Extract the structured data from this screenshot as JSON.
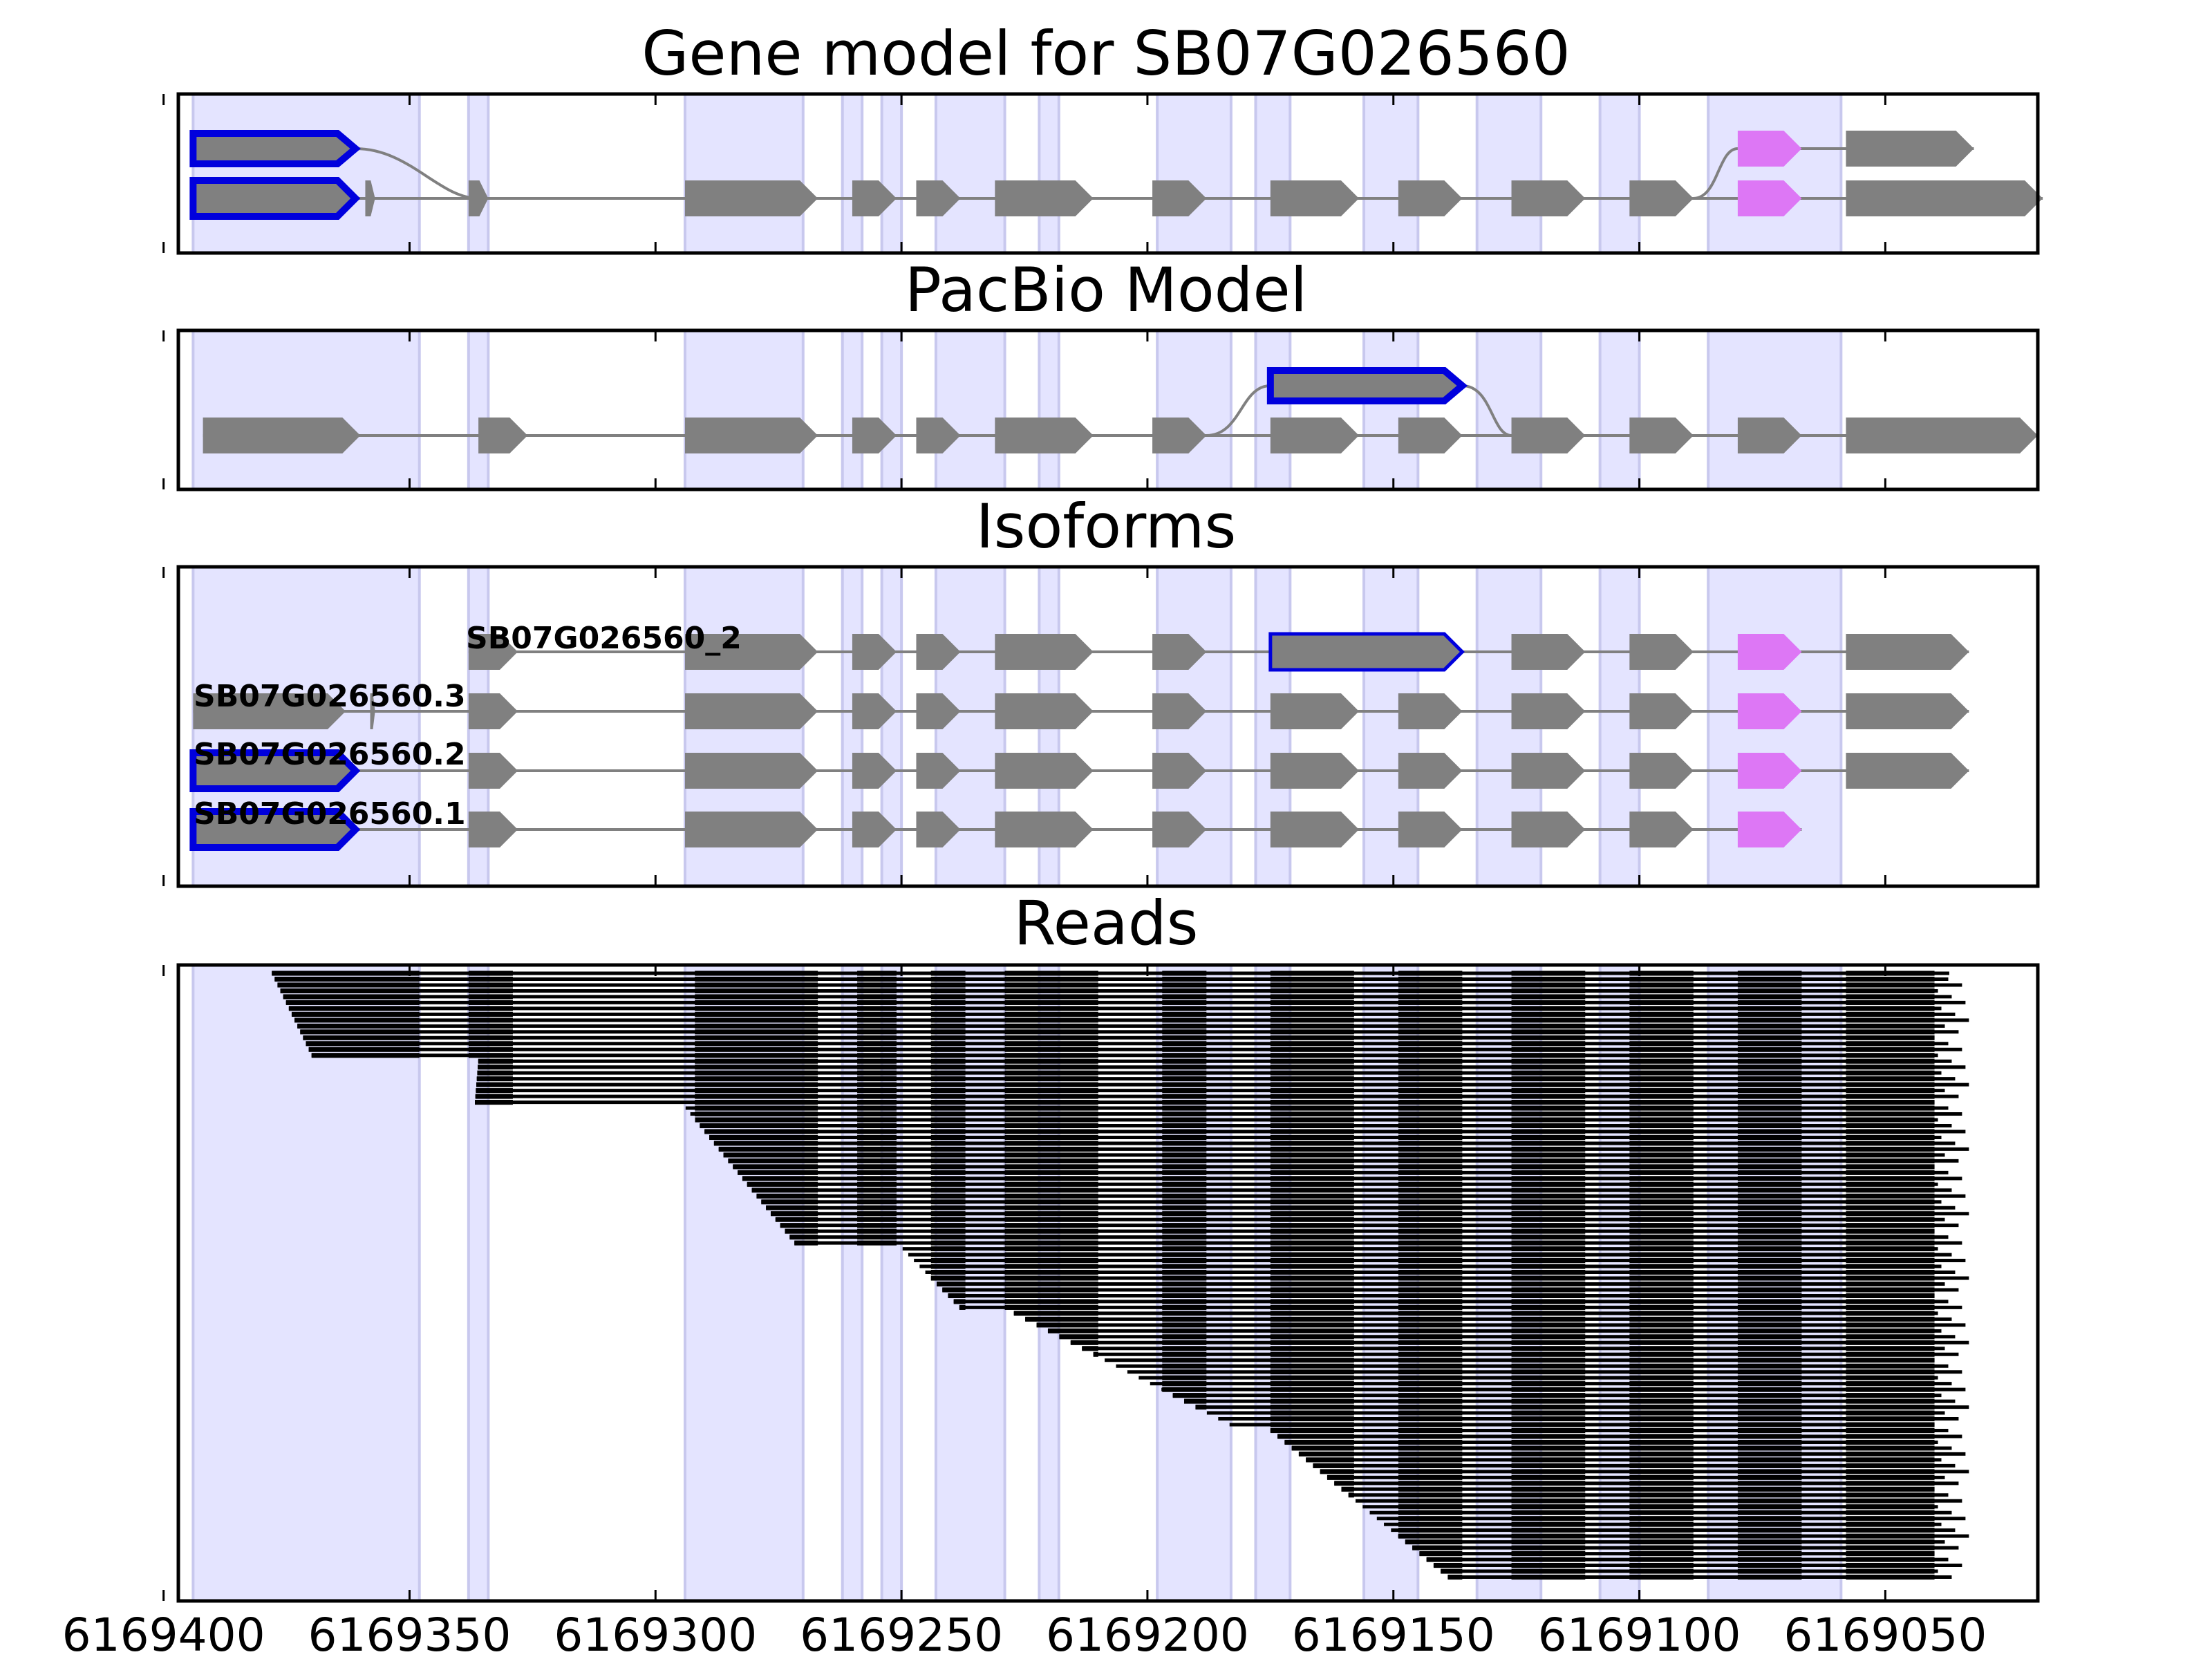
{
  "colors": {
    "exon": "#808080",
    "highlight_outline": "#0000dd",
    "magenta": "#dd77f5",
    "band": "#e4e4ff",
    "band_edge": "#c8c8ee",
    "intron": "#808080",
    "read": "#000000"
  },
  "exon_bands": [
    [
      6169394,
      6169348
    ],
    [
      6169338,
      6169334
    ],
    [
      6169294,
      6169270
    ],
    [
      6169262,
      6169258
    ],
    [
      6169254,
      6169250
    ],
    [
      6169243,
      6169229
    ],
    [
      6169222,
      6169218
    ],
    [
      6169198,
      6169183
    ],
    [
      6169178,
      6169171
    ],
    [
      6169156,
      6169145
    ],
    [
      6169133,
      6169120
    ],
    [
      6169108,
      6169100
    ],
    [
      6169086,
      6169059
    ]
  ],
  "x_axis": {
    "domain": [
      6169397,
      6169019
    ],
    "ticks": [
      {
        "value": 6169400,
        "label": "6169400"
      },
      {
        "value": 6169350,
        "label": "6169350"
      },
      {
        "value": 6169300,
        "label": "6169300"
      },
      {
        "value": 6169250,
        "label": "6169250"
      },
      {
        "value": 6169200,
        "label": "6169200"
      },
      {
        "value": 6169150,
        "label": "6169150"
      },
      {
        "value": 6169100,
        "label": "6169100"
      },
      {
        "value": 6169050,
        "label": "6169050"
      }
    ]
  },
  "panels": [
    {
      "id": "gene-model",
      "title": "Gene model for SB07G026560",
      "tracks": [
        {
          "exons": [
            [
              6169394,
              6169361,
              "highlight"
            ],
            [
              6169359,
              6169357
            ],
            [
              6169338,
              6169334
            ],
            [
              6169294,
              6169267
            ],
            [
              6169260,
              6169251
            ],
            [
              6169247,
              6169238
            ],
            [
              6169231,
              6169211
            ],
            [
              6169199,
              6169188
            ],
            [
              6169175,
              6169157
            ],
            [
              6169149,
              6169136
            ],
            [
              6169126,
              6169111
            ],
            [
              6169102,
              6169089
            ],
            [
              6169080,
              6169067,
              "magenta"
            ],
            [
              6169058,
              6169018
            ]
          ]
        },
        {
          "exons": [
            [
              6169080,
              6169067,
              "magenta"
            ],
            [
              6169058,
              6169032
            ]
          ]
        }
      ]
    },
    {
      "id": "pacbio-model",
      "title": "PacBio Model",
      "tracks": [
        {
          "exons": [
            [
              6169392,
              6169360
            ],
            [
              6169336,
              6169326
            ],
            [
              6169294,
              6169267
            ],
            [
              6169260,
              6169251
            ],
            [
              6169247,
              6169238
            ],
            [
              6169231,
              6169211
            ],
            [
              6169199,
              6169188
            ],
            [
              6169175,
              6169157
            ],
            [
              6169149,
              6169136
            ],
            [
              6169126,
              6169111
            ],
            [
              6169102,
              6169089
            ],
            [
              6169080,
              6169067
            ],
            [
              6169058,
              6169019
            ]
          ]
        },
        {
          "exons": [
            [
              6169175,
              6169136,
              "highlight"
            ]
          ]
        }
      ]
    },
    {
      "id": "isoforms",
      "title": "Isoforms",
      "isoforms": [
        {
          "label": "SB07G026560_2",
          "exons": [
            [
              6169338,
              6169328
            ],
            [
              6169294,
              6169267
            ],
            [
              6169260,
              6169251
            ],
            [
              6169247,
              6169238
            ],
            [
              6169231,
              6169211
            ],
            [
              6169199,
              6169188
            ],
            [
              6169175,
              6169136,
              "outline"
            ],
            [
              6169126,
              6169111
            ],
            [
              6169102,
              6169089
            ],
            [
              6169080,
              6169067,
              "magenta"
            ],
            [
              6169058,
              6169033
            ]
          ]
        },
        {
          "label": "SB07G026560.3",
          "exons": [
            [
              6169394,
              6169363
            ],
            [
              6169358,
              6169357
            ],
            [
              6169338,
              6169328
            ],
            [
              6169294,
              6169267
            ],
            [
              6169260,
              6169251
            ],
            [
              6169247,
              6169238
            ],
            [
              6169231,
              6169211
            ],
            [
              6169199,
              6169188
            ],
            [
              6169175,
              6169157
            ],
            [
              6169149,
              6169136
            ],
            [
              6169126,
              6169111
            ],
            [
              6169102,
              6169089
            ],
            [
              6169080,
              6169067,
              "magenta"
            ],
            [
              6169058,
              6169033
            ]
          ]
        },
        {
          "label": "SB07G026560.2",
          "exons": [
            [
              6169394,
              6169361,
              "highlight"
            ],
            [
              6169338,
              6169328
            ],
            [
              6169294,
              6169267
            ],
            [
              6169260,
              6169251
            ],
            [
              6169247,
              6169238
            ],
            [
              6169231,
              6169211
            ],
            [
              6169199,
              6169188
            ],
            [
              6169175,
              6169157
            ],
            [
              6169149,
              6169136
            ],
            [
              6169126,
              6169111
            ],
            [
              6169102,
              6169089
            ],
            [
              6169080,
              6169067,
              "magenta"
            ],
            [
              6169058,
              6169033
            ]
          ]
        },
        {
          "label": "SB07G026560.1",
          "exons": [
            [
              6169394,
              6169361,
              "highlight"
            ],
            [
              6169338,
              6169328
            ],
            [
              6169294,
              6169267
            ],
            [
              6169260,
              6169251
            ],
            [
              6169247,
              6169238
            ],
            [
              6169231,
              6169211
            ],
            [
              6169199,
              6169188
            ],
            [
              6169175,
              6169157
            ],
            [
              6169149,
              6169136
            ],
            [
              6169126,
              6169111
            ],
            [
              6169102,
              6169089
            ],
            [
              6169080,
              6169067,
              "magenta"
            ]
          ]
        }
      ]
    },
    {
      "id": "reads",
      "title": "Reads",
      "read_count": 104
    }
  ]
}
